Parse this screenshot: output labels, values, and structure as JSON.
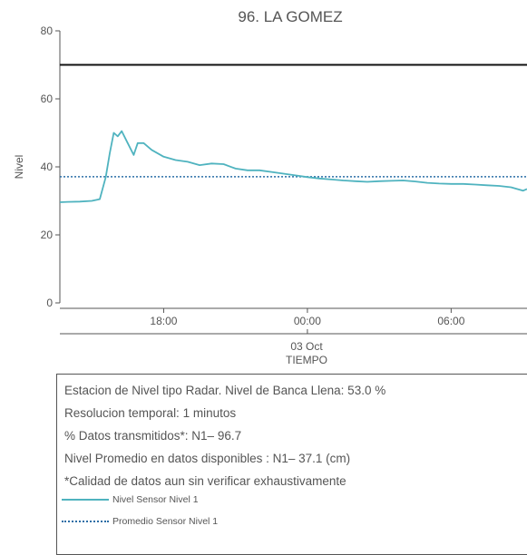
{
  "chart_data": {
    "type": "line",
    "title": "96. LA GOMEZ",
    "ylabel": "Nivel",
    "xlabel": "TIEMPO",
    "date_label": "03 Oct",
    "ylim": [
      0,
      80
    ],
    "yticks": [
      0,
      20,
      40,
      60,
      80
    ],
    "xlim": [
      "2023-10-02T13:40",
      "2023-10-03T09:10"
    ],
    "xticks": [
      {
        "label": "18:00",
        "value": "2023-10-02T18:00"
      },
      {
        "label": "00:00",
        "value": "2023-10-03T00:00"
      },
      {
        "label": "06:00",
        "value": "2023-10-03T06:00"
      }
    ],
    "reference_lines": [
      {
        "value": 70,
        "color": "#111111",
        "style": "solid"
      },
      {
        "value": 37.1,
        "color": "#2B6EA6",
        "style": "dotted"
      }
    ],
    "series": [
      {
        "name": "Nivel Sensor Nivel 1",
        "color": "#4FB3BF",
        "points": [
          [
            "2023-10-02T13:40",
            29.6
          ],
          [
            "2023-10-02T14:00",
            29.7
          ],
          [
            "2023-10-02T14:30",
            29.8
          ],
          [
            "2023-10-02T15:00",
            30.0
          ],
          [
            "2023-10-02T15:20",
            30.5
          ],
          [
            "2023-10-02T15:35",
            37.0
          ],
          [
            "2023-10-02T15:45",
            44.0
          ],
          [
            "2023-10-02T15:55",
            50.0
          ],
          [
            "2023-10-02T16:05",
            49.0
          ],
          [
            "2023-10-02T16:15",
            50.5
          ],
          [
            "2023-10-02T16:30",
            47.0
          ],
          [
            "2023-10-02T16:45",
            43.5
          ],
          [
            "2023-10-02T16:55",
            47.0
          ],
          [
            "2023-10-02T17:10",
            47.0
          ],
          [
            "2023-10-02T17:30",
            45.0
          ],
          [
            "2023-10-02T18:00",
            43.0
          ],
          [
            "2023-10-02T18:30",
            42.0
          ],
          [
            "2023-10-02T19:00",
            41.5
          ],
          [
            "2023-10-02T19:30",
            40.5
          ],
          [
            "2023-10-02T20:00",
            41.0
          ],
          [
            "2023-10-02T20:30",
            40.8
          ],
          [
            "2023-10-02T21:00",
            39.5
          ],
          [
            "2023-10-02T21:30",
            39.0
          ],
          [
            "2023-10-02T22:00",
            39.0
          ],
          [
            "2023-10-02T22:30",
            38.5
          ],
          [
            "2023-10-02T23:00",
            38.0
          ],
          [
            "2023-10-02T23:30",
            37.5
          ],
          [
            "2023-10-03T00:00",
            37.0
          ],
          [
            "2023-10-03T00:30",
            36.6
          ],
          [
            "2023-10-03T01:00",
            36.3
          ],
          [
            "2023-10-03T01:30",
            36.0
          ],
          [
            "2023-10-03T02:00",
            35.8
          ],
          [
            "2023-10-03T02:30",
            35.6
          ],
          [
            "2023-10-03T03:00",
            35.8
          ],
          [
            "2023-10-03T03:30",
            35.9
          ],
          [
            "2023-10-03T04:00",
            36.0
          ],
          [
            "2023-10-03T04:30",
            35.7
          ],
          [
            "2023-10-03T05:00",
            35.3
          ],
          [
            "2023-10-03T05:30",
            35.1
          ],
          [
            "2023-10-03T06:00",
            35.0
          ],
          [
            "2023-10-03T06:30",
            35.0
          ],
          [
            "2023-10-03T07:00",
            34.8
          ],
          [
            "2023-10-03T07:30",
            34.6
          ],
          [
            "2023-10-03T08:00",
            34.4
          ],
          [
            "2023-10-03T08:30",
            34.0
          ],
          [
            "2023-10-03T09:00",
            33.0
          ],
          [
            "2023-10-03T09:10",
            33.5
          ]
        ]
      },
      {
        "name": "Promedio Sensor Nivel 1",
        "color": "#2B6EA6",
        "constant": 37.1
      }
    ],
    "grid": false
  },
  "info": {
    "line1": "Estacion de Nivel tipo Radar. Nivel de Banca Llena: 53.0 %",
    "line2": "Resolucion temporal: 1 minutos",
    "line3": "% Datos transmitidos*: N1– 96.7",
    "line4": "Nivel Promedio en datos disponibles : N1– 37.1 (cm)",
    "line5": "*Calidad de datos aun sin verificar exhaustivamente"
  },
  "legend": {
    "item1": "Nivel Sensor Nivel 1",
    "item2": "Promedio Sensor Nivel 1"
  }
}
